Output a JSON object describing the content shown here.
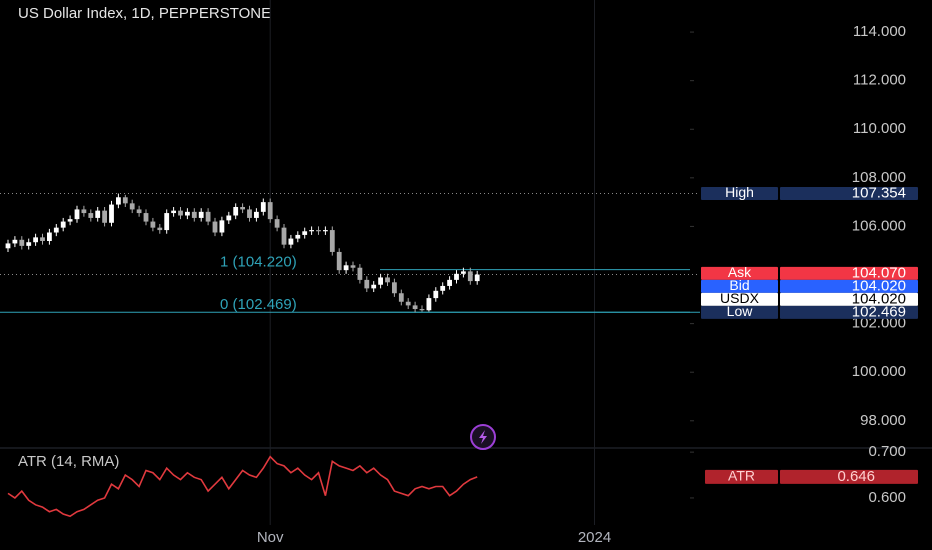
{
  "chart_data": [
    {
      "type": "candlestick",
      "title": "US Dollar Index, 1D, PEPPERSTONE",
      "categories": [
        null,
        null,
        null,
        null,
        null,
        null,
        null,
        null,
        null,
        null,
        null,
        null,
        null,
        null,
        null,
        null,
        null,
        null,
        null,
        null,
        null,
        null,
        null,
        null,
        null,
        null,
        null,
        null,
        null,
        null,
        null,
        null,
        null,
        null,
        null,
        null,
        null,
        null,
        "Nov",
        null,
        null,
        null,
        null,
        null,
        null,
        null,
        null,
        null,
        null,
        null,
        null,
        null,
        null,
        null,
        null,
        null,
        null,
        null,
        null,
        null,
        null,
        null,
        null,
        null,
        null,
        null,
        null,
        null,
        null,
        null,
        null,
        null,
        null,
        null,
        null,
        null,
        null,
        null,
        null,
        null,
        null,
        null,
        null,
        null,
        null,
        "2024",
        null,
        null,
        null,
        null,
        null,
        null,
        null,
        null,
        null,
        null,
        null,
        null,
        null,
        null
      ],
      "open": [
        105.1,
        105.3,
        105.45,
        105.2,
        105.35,
        105.55,
        105.4,
        105.75,
        105.95,
        106.2,
        106.3,
        106.7,
        106.55,
        106.35,
        106.65,
        106.15,
        106.9,
        107.2,
        106.95,
        106.7,
        106.55,
        106.2,
        105.95,
        105.85,
        106.55,
        106.65,
        106.45,
        106.6,
        106.35,
        106.6,
        106.2,
        105.75,
        106.25,
        106.45,
        106.8,
        106.7,
        106.35,
        106.6,
        107.0,
        106.3,
        105.95,
        105.25,
        105.5,
        105.65,
        105.8,
        105.85,
        105.8,
        105.85,
        104.95,
        104.2,
        104.4,
        104.3,
        103.8,
        103.45,
        103.6,
        103.9,
        103.7,
        103.25,
        102.9,
        102.75,
        102.6,
        102.55,
        103.05,
        103.35,
        103.55,
        103.8,
        104.05,
        104.15,
        103.75,
        null,
        null,
        null,
        null,
        null,
        null,
        null,
        null,
        null,
        null,
        null,
        null,
        null,
        null,
        null,
        null,
        null,
        null,
        null,
        null,
        null,
        null,
        null,
        null,
        null,
        null,
        null,
        null,
        null,
        null,
        null
      ],
      "high": [
        105.45,
        105.6,
        105.6,
        105.5,
        105.7,
        105.7,
        105.9,
        106.1,
        106.35,
        106.45,
        106.85,
        106.85,
        106.7,
        106.8,
        106.8,
        107.05,
        107.354,
        107.3,
        107.1,
        106.85,
        106.7,
        106.35,
        106.1,
        106.7,
        106.8,
        106.8,
        106.75,
        106.75,
        106.75,
        106.75,
        106.35,
        106.4,
        106.6,
        106.95,
        106.95,
        106.85,
        106.75,
        107.15,
        107.15,
        106.45,
        106.1,
        105.65,
        105.8,
        105.95,
        106.0,
        106.0,
        106.0,
        106.0,
        105.1,
        104.55,
        104.55,
        104.45,
        103.95,
        103.75,
        104.05,
        104.05,
        103.85,
        103.4,
        103.05,
        102.9,
        102.75,
        103.2,
        103.5,
        103.7,
        103.95,
        104.2,
        104.3,
        104.3,
        104.17,
        null,
        null,
        null,
        null,
        null,
        null,
        null,
        null,
        null,
        null,
        null,
        null,
        null,
        null,
        null,
        null,
        null,
        null,
        null,
        null,
        null,
        null,
        null,
        null,
        null,
        null,
        null,
        null,
        null,
        null,
        null
      ],
      "low": [
        104.95,
        105.15,
        105.05,
        105.05,
        105.2,
        105.25,
        105.25,
        105.6,
        105.8,
        106.05,
        106.15,
        106.4,
        106.2,
        106.2,
        106.0,
        106.0,
        106.75,
        106.8,
        106.55,
        106.4,
        106.05,
        105.8,
        105.7,
        105.7,
        106.4,
        106.3,
        106.3,
        106.2,
        106.2,
        106.05,
        105.6,
        105.6,
        106.1,
        106.3,
        106.55,
        106.2,
        106.2,
        106.45,
        106.15,
        105.8,
        105.1,
        105.1,
        105.35,
        105.5,
        105.65,
        105.65,
        105.65,
        104.8,
        104.05,
        104.05,
        104.15,
        103.65,
        103.3,
        103.3,
        103.45,
        103.55,
        103.1,
        102.75,
        102.6,
        102.469,
        102.5,
        102.5,
        102.9,
        103.2,
        103.4,
        103.65,
        103.9,
        103.6,
        103.6,
        null,
        null,
        null,
        null,
        null,
        null,
        null,
        null,
        null,
        null,
        null,
        null,
        null,
        null,
        null,
        null,
        null,
        null,
        null,
        null,
        null,
        null,
        null,
        null,
        null,
        null,
        null,
        null,
        null,
        null,
        null
      ],
      "close": [
        105.3,
        105.45,
        105.2,
        105.35,
        105.55,
        105.4,
        105.75,
        105.95,
        106.2,
        106.3,
        106.7,
        106.55,
        106.35,
        106.65,
        106.15,
        106.9,
        107.2,
        106.95,
        106.7,
        106.55,
        106.2,
        105.95,
        105.85,
        106.55,
        106.65,
        106.45,
        106.6,
        106.35,
        106.6,
        106.2,
        105.75,
        106.25,
        106.45,
        106.8,
        106.7,
        106.35,
        106.6,
        107.0,
        106.3,
        105.95,
        105.25,
        105.5,
        105.65,
        105.8,
        105.85,
        105.8,
        105.85,
        104.95,
        104.2,
        104.4,
        104.3,
        103.8,
        103.45,
        103.6,
        103.9,
        103.7,
        103.25,
        102.9,
        102.75,
        102.6,
        102.55,
        103.05,
        103.35,
        103.55,
        103.8,
        104.05,
        104.15,
        103.75,
        104.02,
        null,
        null,
        null,
        null,
        null,
        null,
        null,
        null,
        null,
        null,
        null,
        null,
        null,
        null,
        null,
        null,
        null,
        null,
        null,
        null,
        null,
        null,
        null,
        null,
        null,
        null,
        null,
        null,
        null,
        null,
        null
      ],
      "up_color": "#ffffff",
      "down_color": "#a8a8a8",
      "ylim": [
        96.88,
        115.32
      ],
      "yticks": [
        {
          "value": 114,
          "label": "114.000"
        },
        {
          "value": 112,
          "label": "112.000"
        },
        {
          "value": 110,
          "label": "110.000"
        },
        {
          "value": 108,
          "label": "108.000"
        },
        {
          "value": 106,
          "label": "106.000"
        },
        {
          "value": 102,
          "label": "102.000"
        },
        {
          "value": 100,
          "label": "100.000"
        },
        {
          "value": 98,
          "label": "98.000"
        }
      ],
      "fib_color": "#2fa3b8",
      "fib_levels": [
        {
          "value": 104.22,
          "label": "1 (104.220)"
        },
        {
          "value": 102.469,
          "label": "0 (102.469)"
        }
      ],
      "price_tags": [
        {
          "name": "High",
          "value": 107.354,
          "label": "107.354",
          "color": "#1b2f5c",
          "line": "dotted"
        },
        {
          "name": "Ask",
          "value": 104.07,
          "label": "104.070",
          "color": "#f23645",
          "line": "none"
        },
        {
          "name": "Bid",
          "value": 104.02,
          "label": "104.020",
          "color": "#2962ff",
          "line": "none"
        },
        {
          "name": "USDX",
          "value": 104.02,
          "label": "104.020",
          "color": "#ffffff",
          "line": "dotted"
        },
        {
          "name": "Low",
          "value": 102.469,
          "label": "102.469",
          "color": "#1b2f5c",
          "line": "solid"
        }
      ]
    },
    {
      "type": "line",
      "title": "ATR (14, RMA)",
      "series": [
        {
          "name": "ATR",
          "color": "#e0393e",
          "values": [
            0.61,
            0.6,
            0.615,
            0.595,
            0.585,
            0.58,
            0.57,
            0.575,
            0.565,
            0.56,
            0.57,
            0.575,
            0.585,
            0.595,
            0.6,
            0.63,
            0.62,
            0.65,
            0.64,
            0.625,
            0.66,
            0.655,
            0.64,
            0.665,
            0.65,
            0.64,
            0.655,
            0.645,
            0.64,
            0.615,
            0.63,
            0.645,
            0.62,
            0.64,
            0.66,
            0.65,
            0.645,
            0.665,
            0.69,
            0.675,
            0.67,
            0.655,
            0.665,
            0.65,
            0.64,
            0.655,
            0.605,
            0.68,
            0.67,
            0.665,
            0.66,
            0.67,
            0.655,
            0.665,
            0.65,
            0.64,
            0.615,
            0.61,
            0.605,
            0.62,
            0.625,
            0.62,
            0.625,
            0.625,
            0.605,
            0.615,
            0.63,
            0.64,
            0.646,
            null,
            null,
            null,
            null,
            null,
            null,
            null,
            null,
            null,
            null,
            null,
            null,
            null,
            null,
            null,
            null,
            null,
            null,
            null,
            null,
            null,
            null,
            null,
            null,
            null,
            null,
            null,
            null,
            null,
            null,
            null
          ]
        }
      ],
      "last_value": {
        "value": 0.646,
        "label": "0.646"
      },
      "tag_color": "#b0232c",
      "ylim": [
        0.541,
        0.709
      ],
      "yticks": [
        {
          "value": 0.7,
          "label": "0.700"
        },
        {
          "value": 0.6,
          "label": "0.600"
        }
      ]
    }
  ]
}
